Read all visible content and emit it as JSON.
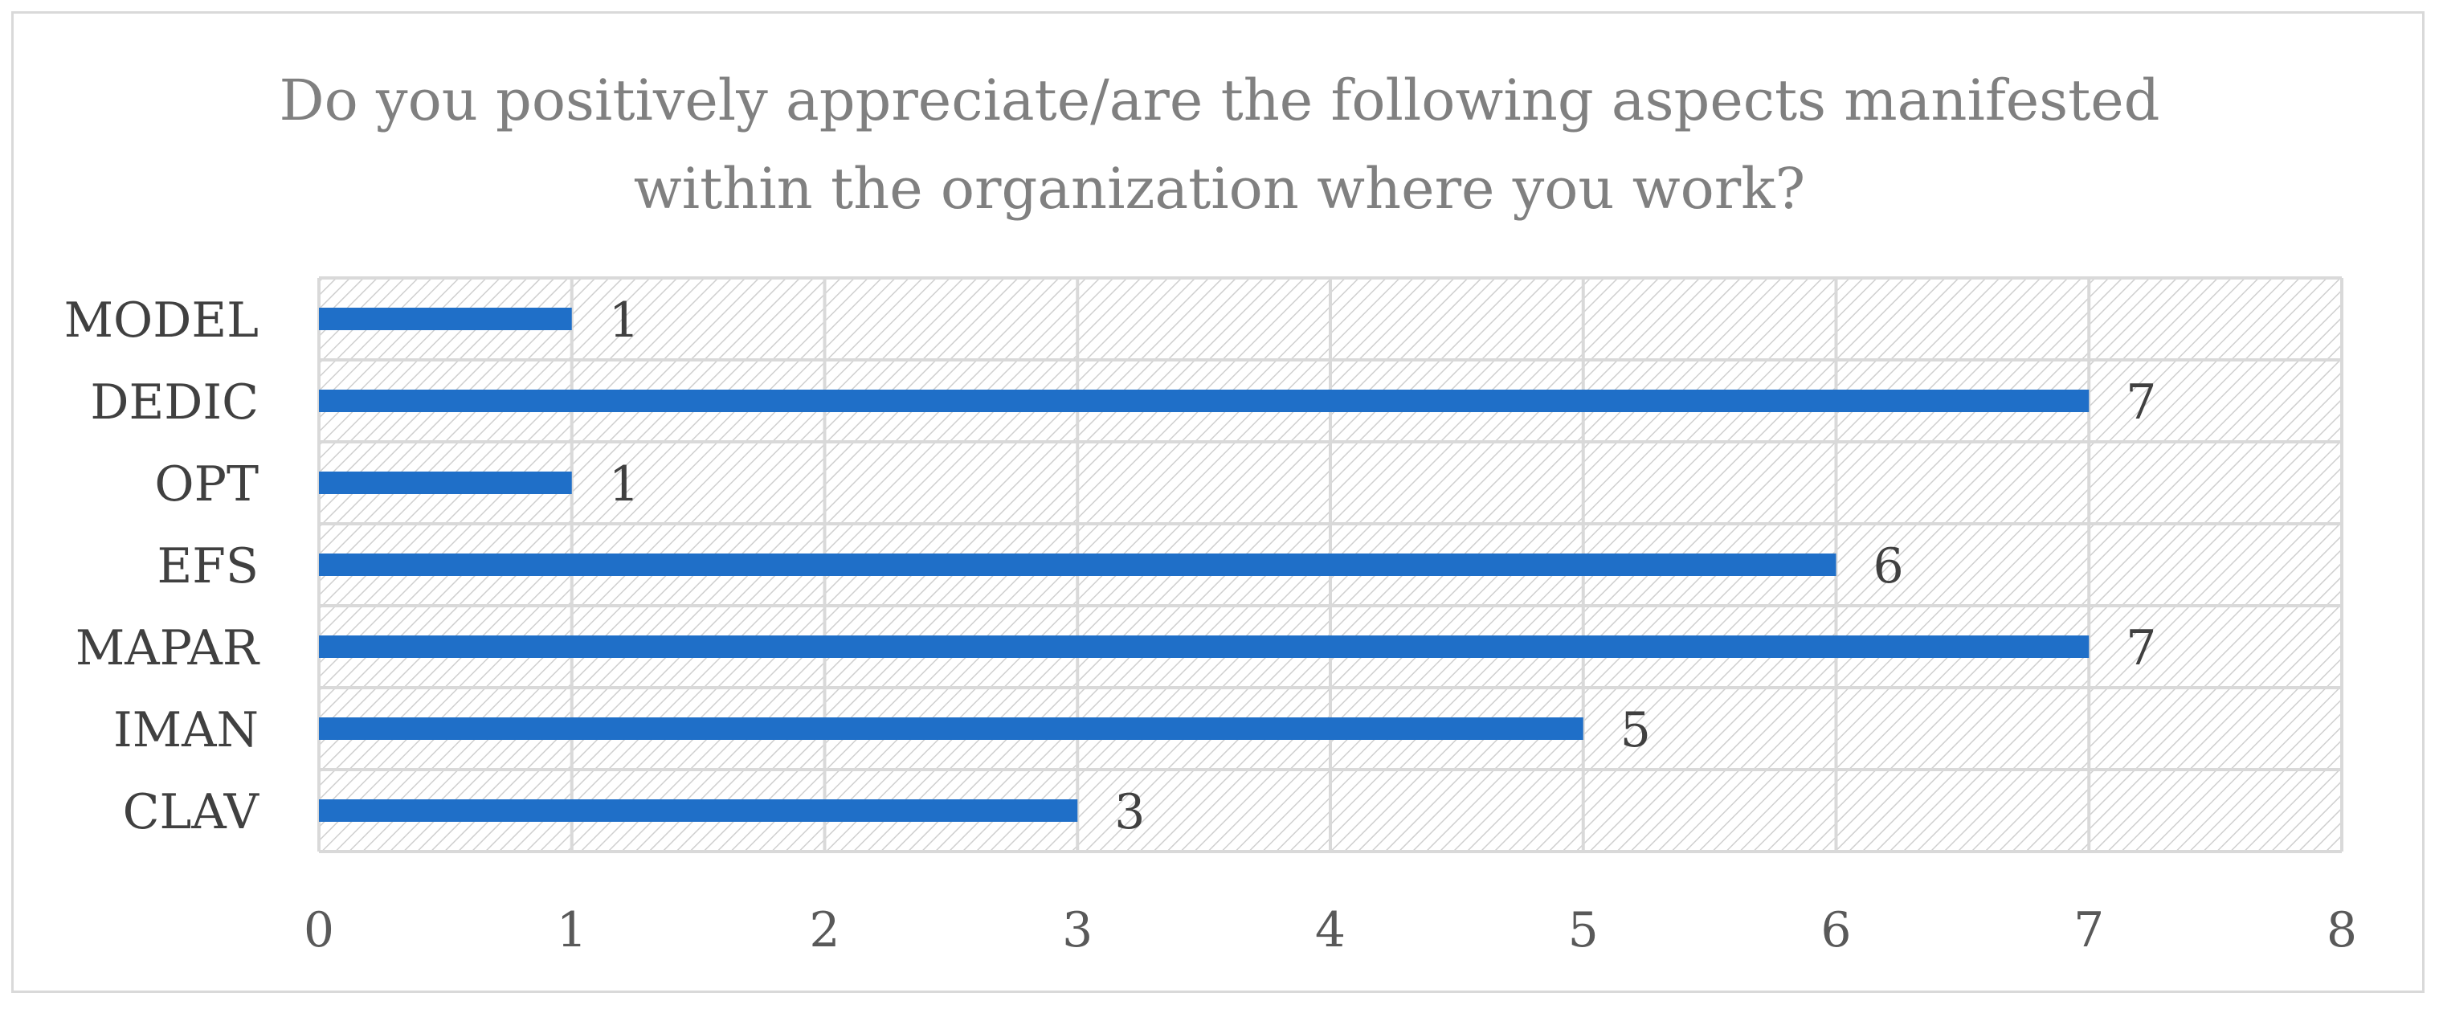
{
  "chart_data": {
    "type": "bar",
    "orientation": "horizontal",
    "title": "Do you positively appreciate/are the following aspects manifested within the organization where you work?",
    "title_lines": [
      "Do you positively appreciate/are the following aspects manifested",
      "within the organization where you work?"
    ],
    "categories": [
      "MODEL",
      "DEDIC",
      "OPT",
      "EFS",
      "MAPAR",
      "IMAN",
      "CLAV"
    ],
    "values": [
      1,
      7,
      1,
      6,
      7,
      5,
      3
    ],
    "xlim": [
      0,
      8
    ],
    "x_ticks": [
      0,
      1,
      2,
      3,
      4,
      5,
      6,
      7,
      8
    ],
    "xlabel": "",
    "ylabel": "",
    "grid": true,
    "legend": "none",
    "bar_color": "#1f6fc8",
    "grid_color": "#d9d9d9",
    "plot_pattern": "diagonal-hatch"
  }
}
